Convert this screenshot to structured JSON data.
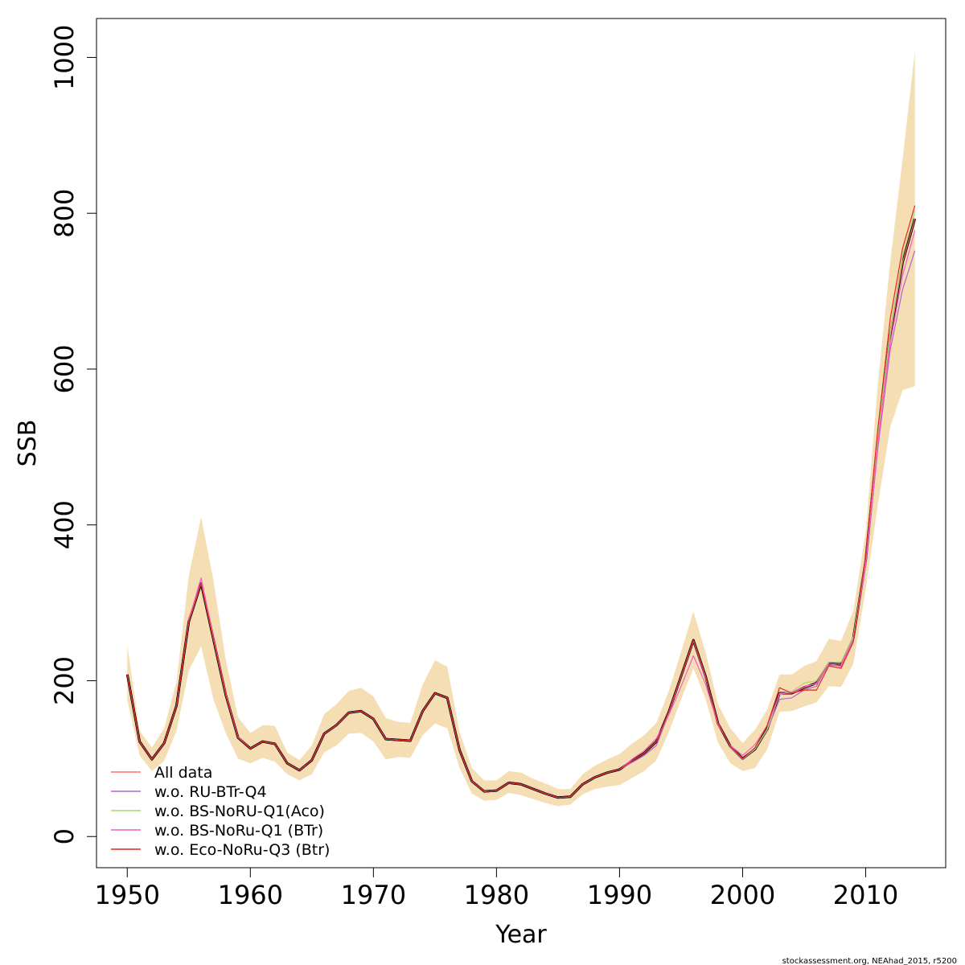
{
  "chart_data": {
    "type": "line",
    "xlabel": "Year",
    "ylabel": "SSB",
    "xlim": [
      1947.5,
      2016.5
    ],
    "ylim": [
      -40,
      1050
    ],
    "x_ticks": [
      1950,
      1960,
      1970,
      1980,
      1990,
      2000,
      2010
    ],
    "x_tick_labels": [
      "1950",
      "1960",
      "1970",
      "1980",
      "1990",
      "2000",
      "2010"
    ],
    "y_ticks": [
      0,
      200,
      400,
      600,
      800,
      1000
    ],
    "y_tick_labels": [
      "0",
      "200",
      "400",
      "600",
      "800",
      "1000"
    ],
    "grid": false,
    "legend_position": "bottom-left",
    "credit": "stockassessment.org, NEAhad_2015, r5200",
    "colors": {
      "band": "#F5DEB3",
      "main": "#000000"
    },
    "x": [
      1950,
      1951,
      1952,
      1953,
      1954,
      1955,
      1956,
      1957,
      1958,
      1959,
      1960,
      1961,
      1962,
      1963,
      1964,
      1965,
      1966,
      1967,
      1968,
      1969,
      1970,
      1971,
      1972,
      1973,
      1974,
      1975,
      1976,
      1977,
      1978,
      1979,
      1980,
      1981,
      1982,
      1983,
      1984,
      1985,
      1986,
      1987,
      1988,
      1989,
      1990,
      1991,
      1992,
      1993,
      1994,
      1995,
      1996,
      1997,
      1998,
      1999,
      2000,
      2001,
      2002,
      2003,
      2004,
      2005,
      2006,
      2007,
      2008,
      2009,
      2010,
      2011,
      2012,
      2013,
      2014
    ],
    "estimate": [
      208,
      122,
      99,
      120,
      168,
      276,
      325,
      253,
      182,
      127,
      113,
      122,
      119,
      94,
      85,
      98,
      132,
      143,
      159,
      161,
      151,
      125,
      124,
      123,
      161,
      184,
      178,
      111,
      71,
      58,
      59,
      69,
      67,
      61,
      55,
      50,
      51,
      67,
      76,
      82,
      86,
      97,
      107,
      122,
      160,
      206,
      252,
      205,
      145,
      116,
      100,
      112,
      138,
      184,
      184,
      191,
      197,
      222,
      221,
      255,
      354,
      512,
      643,
      737,
      793
    ],
    "ci_upper": [
      246,
      136,
      114,
      139,
      199,
      335,
      410,
      329,
      227,
      153,
      133,
      143,
      142,
      108,
      98,
      117,
      157,
      170,
      187,
      191,
      180,
      152,
      147,
      146,
      195,
      226,
      218,
      134,
      88,
      72,
      72,
      84,
      82,
      74,
      68,
      61,
      61,
      80,
      91,
      99,
      106,
      119,
      130,
      146,
      187,
      237,
      289,
      236,
      170,
      139,
      120,
      137,
      163,
      208,
      208,
      219,
      225,
      254,
      251,
      290,
      391,
      583,
      738,
      870,
      1008
    ],
    "ci_lower": [
      175,
      104,
      84,
      97,
      136,
      213,
      244,
      176,
      133,
      100,
      94,
      101,
      96,
      80,
      72,
      80,
      108,
      117,
      132,
      133,
      122,
      99,
      102,
      101,
      130,
      145,
      139,
      88,
      55,
      46,
      47,
      56,
      53,
      48,
      43,
      39,
      41,
      54,
      61,
      64,
      66,
      75,
      84,
      98,
      134,
      176,
      216,
      176,
      120,
      94,
      84,
      88,
      112,
      160,
      161,
      167,
      172,
      193,
      192,
      222,
      317,
      427,
      526,
      573,
      578
    ],
    "series": [
      {
        "name": "All data",
        "color": "#FF6E6E",
        "values": [
          208,
          122,
          99,
          120,
          168,
          276,
          325,
          253,
          182,
          127,
          113,
          122,
          119,
          94,
          85,
          98,
          132,
          143,
          159,
          161,
          151,
          125,
          124,
          123,
          161,
          184,
          178,
          111,
          71,
          58,
          59,
          69,
          67,
          61,
          55,
          50,
          51,
          67,
          76,
          82,
          86,
          97,
          107,
          122,
          160,
          206,
          252,
          205,
          145,
          116,
          100,
          112,
          138,
          184,
          184,
          191,
          197,
          222,
          221,
          255,
          354,
          512,
          643,
          737,
          793
        ]
      },
      {
        "name": "w.o. RU-BTr-Q4",
        "color": "#B266CC",
        "values": [
          208,
          122,
          99,
          120,
          168,
          276,
          326,
          254,
          182,
          127,
          113,
          122,
          119,
          94,
          85,
          98,
          132,
          143,
          159,
          161,
          151,
          125,
          124,
          123,
          161,
          184,
          178,
          111,
          71,
          58,
          59,
          69,
          67,
          61,
          55,
          50,
          51,
          67,
          76,
          82,
          86,
          95,
          104,
          117,
          158,
          205,
          251,
          203,
          146,
          115,
          99,
          112,
          137,
          176,
          178,
          188,
          193,
          222,
          218,
          252,
          348,
          500,
          625,
          702,
          752
        ]
      },
      {
        "name": "w.o. BS-NoRU-Q1(Aco)",
        "color": "#A6D96A",
        "values": [
          208,
          122,
          99,
          120,
          168,
          276,
          325,
          253,
          182,
          127,
          113,
          122,
          119,
          94,
          85,
          98,
          132,
          143,
          159,
          161,
          151,
          125,
          124,
          123,
          161,
          184,
          178,
          111,
          71,
          58,
          59,
          69,
          67,
          61,
          55,
          50,
          51,
          67,
          76,
          82,
          86,
          97,
          107,
          122,
          160,
          206,
          252,
          205,
          145,
          116,
          100,
          112,
          138,
          183,
          186,
          197,
          200,
          224,
          224,
          257,
          358,
          518,
          648,
          745,
          803
        ]
      },
      {
        "name": "w.o. BS-NoRu-Q1 (BTr)",
        "color": "#F25FC8",
        "values": [
          208,
          122,
          99,
          120,
          168,
          278,
          332,
          256,
          184,
          128,
          113,
          122,
          119,
          94,
          85,
          98,
          132,
          143,
          159,
          161,
          151,
          125,
          124,
          123,
          161,
          184,
          178,
          111,
          71,
          58,
          59,
          69,
          67,
          61,
          55,
          50,
          51,
          67,
          76,
          82,
          86,
          99,
          110,
          126,
          156,
          193,
          232,
          195,
          143,
          117,
          104,
          118,
          142,
          183,
          185,
          193,
          196,
          220,
          219,
          254,
          350,
          505,
          634,
          720,
          778
        ]
      },
      {
        "name": "w.o. Eco-NoRu-Q3 (Btr)",
        "color": "#E32626",
        "values": [
          208,
          122,
          99,
          120,
          168,
          276,
          325,
          253,
          182,
          127,
          113,
          122,
          119,
          94,
          85,
          98,
          132,
          143,
          159,
          161,
          151,
          125,
          124,
          123,
          161,
          184,
          178,
          111,
          71,
          58,
          59,
          69,
          67,
          61,
          55,
          50,
          51,
          67,
          76,
          82,
          86,
          97,
          107,
          122,
          160,
          206,
          252,
          205,
          145,
          116,
          100,
          114,
          143,
          191,
          184,
          188,
          188,
          219,
          216,
          250,
          360,
          525,
          665,
          755,
          810
        ]
      }
    ]
  }
}
